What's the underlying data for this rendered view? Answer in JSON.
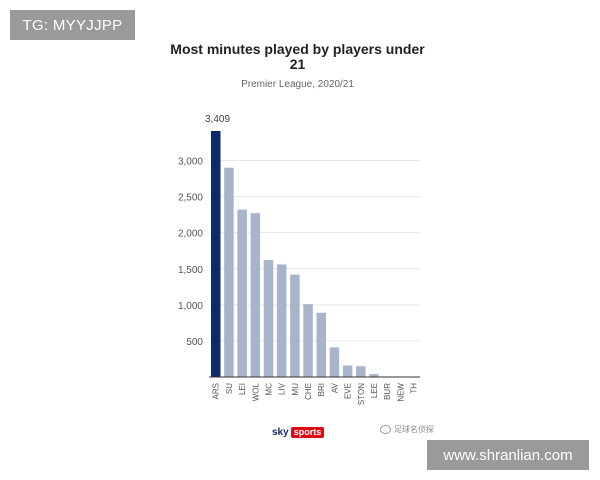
{
  "watermarks": {
    "top_left": "TG: MYYJJPP",
    "bottom_right": "www.shranlian.com"
  },
  "brand": {
    "sky": "sky",
    "sports": "sports",
    "credit_cjk": "足球名侦探"
  },
  "colors": {
    "highlight": "#0d2a6b",
    "bar": "#a7b4cc",
    "grid": "#e6e6e6",
    "axis": "#333333",
    "tick_text": "#555555"
  },
  "chart_data": {
    "type": "bar",
    "title": "Most minutes played by players under 21",
    "subtitle": "Premier League, 2020/21",
    "xlabel": "",
    "ylabel": "",
    "categories": [
      "ARS",
      "SU",
      "LEI",
      "WOL",
      "MC",
      "LIV",
      "MU",
      "CHE",
      "BRI",
      "AV",
      "EVE",
      "STON",
      "LEE",
      "BUR",
      "NEW",
      "TH"
    ],
    "values": [
      3409,
      2900,
      2320,
      2270,
      1620,
      1560,
      1420,
      1010,
      890,
      410,
      160,
      150,
      40,
      0,
      0,
      0
    ],
    "highlight_index": 0,
    "data_labels": [
      {
        "index": 0,
        "text": "3,409"
      }
    ],
    "yticks": [
      500,
      1000,
      1500,
      2000,
      2500,
      3000
    ],
    "ytick_labels": [
      "500",
      "1,000",
      "1,500",
      "2,000",
      "2,500",
      "3,000"
    ],
    "ylim": [
      0,
      3409
    ],
    "grid": true,
    "legend": "none"
  }
}
